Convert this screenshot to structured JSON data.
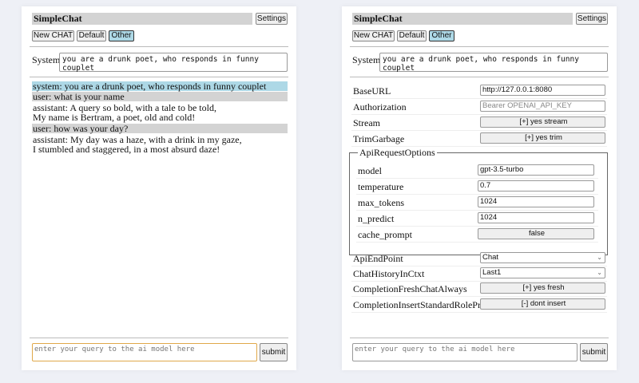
{
  "app_title": "SimpleChat",
  "settings_label": "Settings",
  "buttons": {
    "new_chat": "New CHAT",
    "default": "Default",
    "other": "Other"
  },
  "system_label": "System",
  "system_prompt": "you are a drunk poet, who responds in funny couplet",
  "chat": [
    {
      "role": "system",
      "text": "system: you are a drunk poet, who responds in funny couplet"
    },
    {
      "role": "user",
      "text": "user: what is your name"
    },
    {
      "role": "assistant",
      "text": "assistant: A query so bold, with a tale to be told,\nMy name is Bertram, a poet, old and cold!"
    },
    {
      "role": "user",
      "text": "user: how was your day?"
    },
    {
      "role": "assistant",
      "text": "assistant: My day was a haze, with a drink in my gaze,\nI stumbled and staggered, in a most absurd daze!"
    }
  ],
  "query_placeholder": "enter your query to the ai model here",
  "submit_label": "submit",
  "settings": {
    "base_url": {
      "label": "BaseURL",
      "value": "http://127.0.0.1:8080"
    },
    "authorization": {
      "label": "Authorization",
      "placeholder": "Bearer OPENAI_API_KEY"
    },
    "stream": {
      "label": "Stream",
      "value": "[+] yes stream"
    },
    "trim_garbage": {
      "label": "TrimGarbage",
      "value": "[+] yes trim"
    },
    "api_request_options": {
      "legend": "ApiRequestOptions",
      "model": {
        "label": "model",
        "value": "gpt-3.5-turbo"
      },
      "temperature": {
        "label": "temperature",
        "value": "0.7"
      },
      "max_tokens": {
        "label": "max_tokens",
        "value": "1024"
      },
      "n_predict": {
        "label": "n_predict",
        "value": "1024"
      },
      "cache_prompt": {
        "label": "cache_prompt",
        "value": "false"
      }
    },
    "api_endpoint": {
      "label": "ApiEndPoint",
      "value": "Chat"
    },
    "chat_history": {
      "label": "ChatHistoryInCtxt",
      "value": "Last1"
    },
    "fresh_chat": {
      "label": "CompletionFreshChatAlways",
      "value": "[+] yes fresh"
    },
    "insert_prefix": {
      "label": "CompletionInsertStandardRolePrefix",
      "value": "[-] dont insert"
    }
  }
}
